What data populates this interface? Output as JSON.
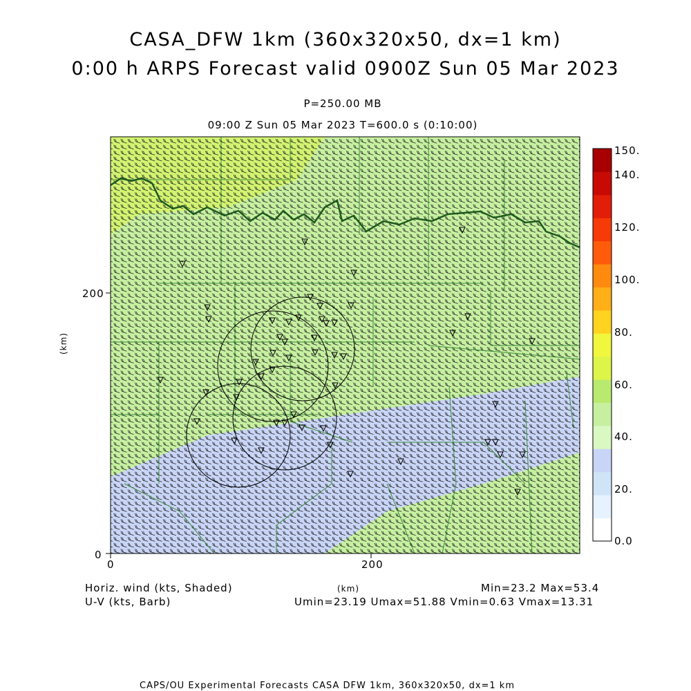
{
  "titles": {
    "line1": "CASA_DFW 1km (360x320x50, dx=1 km)",
    "line2": "0:00 h ARPS Forecast valid 0900Z Sun 05 Mar 2023"
  },
  "level": "P=250.00 MB",
  "time_info": "09:00 Z Sun 05 Mar 2023    T=600.0 s (0:10:00)",
  "axes": {
    "unit": "(km)",
    "x_ticks": [
      "0",
      "200"
    ],
    "y_ticks": [
      "0",
      "200"
    ]
  },
  "colorbar": {
    "labels": [
      "150.",
      "140.",
      "120.",
      "100.",
      "80.",
      "60.",
      "40.",
      "20.",
      "0.0"
    ],
    "colors": [
      "#ffffff",
      "#e6f2ff",
      "#cfe4f7",
      "#c9d5f7",
      "#d9f8c2",
      "#c6f0a0",
      "#b9ea70",
      "#ddf548",
      "#f1f73c",
      "#ffd320",
      "#ffaf17",
      "#ff8a10",
      "#ff5b0b",
      "#f63a08",
      "#e21d08",
      "#c80a05",
      "#a80000"
    ]
  },
  "legend": {
    "field1": "Horiz. wind (kts, Shaded)",
    "field2": "U-V (kts, Barb)",
    "minmax": "Min=23.2 Max=53.4",
    "uv_stats": "Umin=23.19 Umax=51.88 Vmin=0.63 Vmax=13.31"
  },
  "footer": "CAPS/OU Experimental Forecasts  CASA DFW 1km, 360x320x50, dx=1 km"
}
